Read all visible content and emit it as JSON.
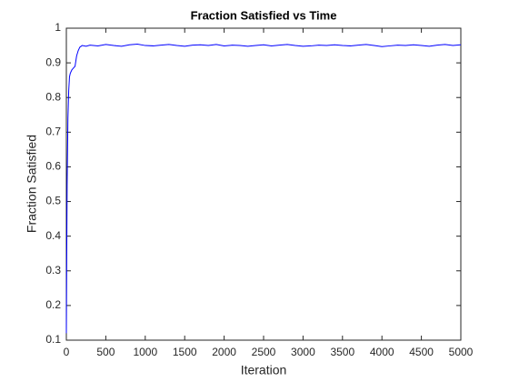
{
  "chart_data": {
    "type": "line",
    "title": "Fraction Satisfied vs Time",
    "xlabel": "Iteration",
    "ylabel": "Fraction Satisfied",
    "x": [
      0,
      5,
      10,
      20,
      30,
      40,
      50,
      70,
      90,
      110,
      130,
      150,
      170,
      200,
      250,
      300,
      400,
      500,
      600,
      700,
      800,
      900,
      1000,
      1100,
      1200,
      1300,
      1400,
      1500,
      1600,
      1700,
      1800,
      1900,
      2000,
      2100,
      2200,
      2300,
      2400,
      2500,
      2600,
      2700,
      2800,
      2900,
      3000,
      3100,
      3200,
      3300,
      3400,
      3500,
      3600,
      3700,
      3800,
      3900,
      4000,
      4100,
      4200,
      4300,
      4400,
      4500,
      4600,
      4700,
      4800,
      4900,
      5000
    ],
    "values": [
      0.12,
      0.35,
      0.55,
      0.74,
      0.82,
      0.86,
      0.87,
      0.88,
      0.885,
      0.89,
      0.92,
      0.935,
      0.945,
      0.95,
      0.948,
      0.951,
      0.949,
      0.953,
      0.95,
      0.948,
      0.952,
      0.954,
      0.95,
      0.949,
      0.951,
      0.953,
      0.95,
      0.948,
      0.951,
      0.952,
      0.95,
      0.953,
      0.949,
      0.951,
      0.95,
      0.948,
      0.95,
      0.952,
      0.949,
      0.951,
      0.953,
      0.95,
      0.948,
      0.949,
      0.951,
      0.95,
      0.952,
      0.95,
      0.949,
      0.951,
      0.953,
      0.95,
      0.947,
      0.949,
      0.951,
      0.95,
      0.952,
      0.95,
      0.948,
      0.951,
      0.953,
      0.95,
      0.952
    ],
    "color": "#0000ff",
    "xlim": [
      0,
      5000
    ],
    "xticks": [
      0,
      500,
      1000,
      1500,
      2000,
      2500,
      3000,
      3500,
      4000,
      4500,
      5000
    ],
    "ylim": [
      0.1,
      1
    ],
    "yticks": [
      0.1,
      0.2,
      0.3,
      0.4,
      0.5,
      0.6,
      0.7,
      0.8,
      0.9,
      1
    ]
  }
}
